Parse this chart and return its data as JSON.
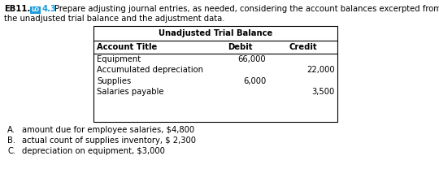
{
  "title_prefix": "EB11.",
  "lo_color": "#1a9cd8",
  "lo_number": "4.3",
  "header_line1": "Prepare adjusting journal entries, as needed, considering the account balances excerpted from",
  "header_line2": "the unadjusted trial balance and the adjustment data.",
  "table_title": "Unadjusted Trial Balance",
  "col_headers": [
    "Account Title",
    "Debit",
    "Credit"
  ],
  "rows": [
    [
      "Equipment",
      "66,000",
      ""
    ],
    [
      "Accumulated depreciation",
      "",
      "22,000"
    ],
    [
      "Supplies",
      "6,000",
      ""
    ],
    [
      "Salaries payable",
      "",
      "3,500"
    ]
  ],
  "bullets": [
    [
      "A.",
      "amount due for employee salaries, $4,800"
    ],
    [
      "B.",
      "actual count of supplies inventory, $ 2,300"
    ],
    [
      "C.",
      "depreciation on equipment, $3,000"
    ]
  ],
  "bg_color": "#ffffff",
  "border_color": "#000000",
  "text_color": "#000000",
  "fontsize": 7.2,
  "fig_width": 5.4,
  "fig_height": 2.08,
  "dpi": 100
}
